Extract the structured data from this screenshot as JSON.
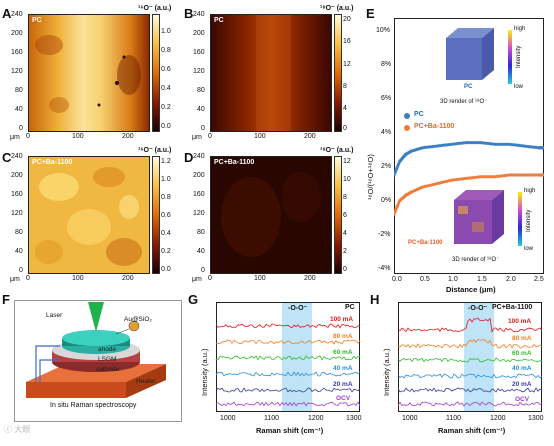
{
  "panels": {
    "a": "A",
    "b": "B",
    "c": "C",
    "d": "D",
    "e": "E",
    "f": "F",
    "g": "G",
    "h": "H"
  },
  "maps": {
    "A": {
      "tag": "PC",
      "cb_title": "¹⁶O⁻ (a.u.)",
      "cb_ticks": [
        "1.0",
        "0.8",
        "0.6",
        "0.4",
        "0.2",
        "0.0"
      ]
    },
    "B": {
      "tag": "PC",
      "cb_title": "¹⁸O⁻ (a.u.)",
      "cb_ticks": [
        "20",
        "16",
        "12",
        "8",
        "4",
        "0"
      ]
    },
    "C": {
      "tag": "PC+Ba-1100",
      "cb_title": "¹⁶O⁻ (a.u.)",
      "cb_ticks": [
        "1.2",
        "1.0",
        "0.8",
        "0.6",
        "0.4",
        "0.2",
        "0.0"
      ]
    },
    "D": {
      "tag": "PC+Ba-1100",
      "cb_title": "¹⁸O⁻ (a.u.)",
      "cb_ticks": [
        "12",
        "10",
        "8",
        "6",
        "4",
        "2",
        "0"
      ]
    },
    "y_ticks": [
      "240",
      "200",
      "160",
      "120",
      "80",
      "40",
      "0"
    ],
    "x_ticks": [
      "0",
      "100",
      "200"
    ],
    "unit": "μm"
  },
  "panel_e": {
    "ylabel": "¹⁸O/(¹⁶O+¹⁸O)",
    "xlabel": "Distance (μm)",
    "y_ticks": [
      "10%",
      "8%",
      "6%",
      "4%",
      "2%",
      "0%",
      "-2%",
      "-4%"
    ],
    "x_ticks": [
      "0.0",
      "0.5",
      "1.0",
      "1.5",
      "2.0",
      "2.5"
    ],
    "legend": [
      "PC",
      "PC+Ba-1100"
    ],
    "cube1_tag": "PC",
    "cube1_caption": "3D render of ¹⁸O⁻",
    "cube2_tag": "PC+Ba-1100",
    "cube2_caption": "3D render of ¹⁸O⁻",
    "intensity": "Intensity",
    "high": "high",
    "low": "low"
  },
  "panel_f": {
    "laser": "Laser",
    "particle": "Au@SiO₂",
    "anode": "anode",
    "lsgm": "LSGM",
    "cathode": "cathode",
    "heater": "Heater",
    "caption": "In situ Raman spectroscopy",
    "watermark": "ⓒ 大眼"
  },
  "panel_g": {
    "tag": "PC",
    "band": "-O-O⁻",
    "ylabel": "Intensity (a.u.)",
    "xlabel": "Raman shift (cm⁻¹)",
    "x_ticks": [
      "1000",
      "1100",
      "1200",
      "1300"
    ],
    "currents": [
      "100 mA",
      "80 mA",
      "60 mA",
      "40 mA",
      "20 mA",
      "OCV"
    ]
  },
  "panel_h": {
    "tag": "PC+Ba-1100",
    "band": "-O-O⁻",
    "ylabel": "Intensity (a.u.)",
    "xlabel": "Raman shift (cm⁻¹)",
    "x_ticks": [
      "1000",
      "1100",
      "1200",
      "1300"
    ],
    "currents": [
      "100 mA",
      "80 mA",
      "60 mA",
      "40 mA",
      "20 mA",
      "OCV"
    ]
  },
  "colors": {
    "c100": "#e8141c",
    "c80": "#f07e1e",
    "c60": "#2fbf2a",
    "c40": "#2a8fd8",
    "c20": "#3a3aa6",
    "cOCV": "#a23ad2",
    "pc": "#3b7fc4",
    "pcba": "#f07c3a",
    "band": "#bfe4f7"
  },
  "chart_data": {
    "type": "scatter",
    "xlabel": "Distance (μm)",
    "ylabel": "¹⁸O/(¹⁶O+¹⁸O)",
    "xlim": [
      0,
      2.6
    ],
    "ylim": [
      -4,
      11
    ],
    "series": [
      {
        "name": "PC",
        "x": [
          0.0,
          0.1,
          0.2,
          0.3,
          0.5,
          0.75,
          1.0,
          1.25,
          1.5,
          1.75,
          2.0,
          2.25,
          2.5,
          2.6
        ],
        "y": [
          1.8,
          2.6,
          3.0,
          3.2,
          3.4,
          3.5,
          3.6,
          3.7,
          3.7,
          3.6,
          3.6,
          3.5,
          3.4,
          3.4
        ]
      },
      {
        "name": "PC+Ba-1100",
        "x": [
          0.0,
          0.1,
          0.2,
          0.3,
          0.5,
          0.75,
          1.0,
          1.25,
          1.5,
          1.75,
          2.0,
          2.25,
          2.5,
          2.6
        ],
        "y": [
          -0.5,
          0.3,
          0.6,
          0.8,
          1.1,
          1.3,
          1.5,
          1.6,
          1.7,
          1.7,
          1.8,
          1.8,
          1.8,
          1.8
        ]
      }
    ]
  }
}
